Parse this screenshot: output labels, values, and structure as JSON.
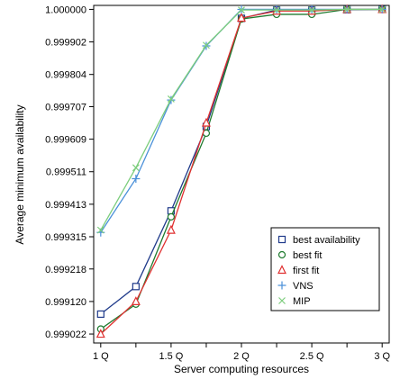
{
  "chart_data": {
    "type": "line",
    "xlabel": "Server computing resources",
    "ylabel": "Average minimum availability",
    "x": [
      1.0,
      1.25,
      1.5,
      1.75,
      2.0,
      2.25,
      2.5,
      2.75,
      3.0
    ],
    "xlim": [
      0.95,
      3.05
    ],
    "ylim": [
      0.998995,
      1.000012
    ],
    "x_ticks": [
      1.0,
      1.5,
      2.0,
      2.5,
      3.0
    ],
    "x_tick_labels": [
      "1 Q",
      "1.5 Q",
      "2 Q",
      "2.5 Q",
      "3 Q"
    ],
    "y_ticks": [
      0.999022,
      0.99912,
      0.999218,
      0.999315,
      0.999413,
      0.999511,
      0.999609,
      0.999707,
      0.999804,
      0.999902,
      1.0
    ],
    "y_tick_labels": [
      "0.999022",
      "0.999120",
      "0.999218",
      "0.999315",
      "0.999413",
      "0.999511",
      "0.999609",
      "0.999707",
      "0.999804",
      "0.999902",
      "1.000000"
    ],
    "grid": false,
    "legend_position": "bottom-right",
    "series": [
      {
        "name": "best availability",
        "marker": "square",
        "color": "#1f3a8a",
        "values": [
          0.999082,
          0.999165,
          0.999393,
          0.999647,
          0.999973,
          0.999998,
          0.999998,
          0.999999,
          1.0
        ]
      },
      {
        "name": "best fit",
        "marker": "circle",
        "color": "#1e7a2e",
        "values": [
          0.999037,
          0.999112,
          0.999375,
          0.999627,
          0.999971,
          0.999985,
          0.999985,
          1.0,
          1.0
        ]
      },
      {
        "name": "first fit",
        "marker": "triangle",
        "color": "#e03030",
        "values": [
          0.999022,
          0.99912,
          0.999335,
          0.999658,
          0.999974,
          0.999995,
          0.999995,
          1.0,
          1.0
        ]
      },
      {
        "name": "VNS",
        "marker": "plus",
        "color": "#4a90d9",
        "values": [
          0.999328,
          0.99949,
          0.999727,
          0.99989,
          1.0,
          1.0,
          1.0,
          1.0,
          1.0
        ]
      },
      {
        "name": "MIP",
        "marker": "x",
        "color": "#7ccd7c",
        "values": [
          0.999335,
          0.999523,
          0.99973,
          0.999892,
          0.999998,
          0.999998,
          0.999998,
          1.0,
          1.0
        ]
      }
    ]
  }
}
